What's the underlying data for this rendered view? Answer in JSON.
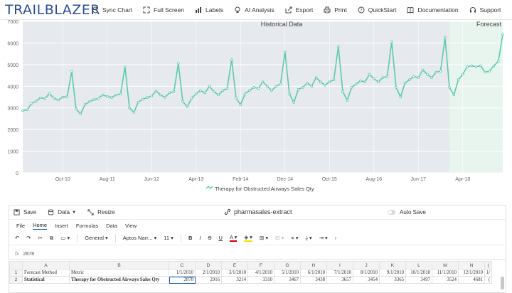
{
  "app": {
    "logo": "TRAILBLAZER",
    "toolbar": [
      {
        "label": "Sync Chart",
        "icon": "sync-icon"
      },
      {
        "label": "Full Screen",
        "icon": "fullscreen-icon"
      },
      {
        "label": "Labels",
        "icon": "labels-icon"
      },
      {
        "label": "AI Analysis",
        "icon": "lightbulb-icon"
      },
      {
        "label": "Export",
        "icon": "export-icon"
      },
      {
        "label": "Print",
        "icon": "print-icon"
      },
      {
        "label": "QuickStart",
        "icon": "help-icon"
      },
      {
        "label": "Documentation",
        "icon": "book-icon"
      },
      {
        "label": "Support",
        "icon": "support-icon"
      }
    ]
  },
  "chart_data": {
    "type": "line",
    "annotations": [
      "Historical Data",
      "Forecast"
    ],
    "legend": [
      "Therapy for Obstructed Airways Sales Qty"
    ],
    "legend_placement": "bottom",
    "ylim": [
      0,
      7000
    ],
    "yticks": [
      "0",
      "1000",
      "2000",
      "3000",
      "4000",
      "5000",
      "6000",
      "7000"
    ],
    "xticks": [
      "Oct-10",
      "Aug-11",
      "Jun-12",
      "Apr-13",
      "Feb-14",
      "Dec-14",
      "Oct-15",
      "Aug-16",
      "Jun-17",
      "Apr-18"
    ],
    "color": "#5ec9ad",
    "forecast_shade": "#e8f5ef",
    "history_shade": "#e6e9ee",
    "series": [
      {
        "name": "Therapy for Obstructed Airways Sales Qty",
        "values": [
          2878,
          2916,
          3214,
          3310,
          3467,
          3438,
          3657,
          3454,
          3365,
          3497,
          3524,
          4681,
          2950,
          2720,
          3150,
          3290,
          3380,
          3440,
          3600,
          3530,
          3480,
          3600,
          3640,
          4900,
          3000,
          2800,
          3270,
          3400,
          3480,
          3550,
          3790,
          3600,
          3490,
          3700,
          3750,
          5050,
          3300,
          3050,
          3450,
          3650,
          3800,
          3700,
          4000,
          3750,
          3600,
          3800,
          3900,
          5230,
          3450,
          3150,
          3650,
          3800,
          3950,
          3900,
          4200,
          4000,
          3800,
          4000,
          4100,
          5580,
          3650,
          3250,
          3850,
          3950,
          4150,
          4000,
          4400,
          4200,
          4050,
          4200,
          4300,
          5840,
          3750,
          3350,
          3950,
          4100,
          4250,
          4200,
          4550,
          4350,
          4200,
          4400,
          4450,
          6050,
          3950,
          3500,
          4150,
          4300,
          4450,
          4400,
          4750,
          4550,
          4400,
          4650,
          4700,
          6250,
          3950,
          3600,
          4300,
          4550,
          4900,
          4950,
          4900,
          4950,
          4650,
          4700,
          4950,
          5150,
          6400
        ]
      }
    ]
  },
  "panel": {
    "save": "Save",
    "data": "Data",
    "resize": "Resize",
    "file_title": "pharmasales-extract",
    "autosave": "Auto Save"
  },
  "menu": [
    "File",
    "Home",
    "Insert",
    "Formulas",
    "Data",
    "View"
  ],
  "ribbon": {
    "format": "General",
    "font": "Aptos Narr...",
    "size": "11"
  },
  "formula_bar": {
    "fx": "fx",
    "value": "2878"
  },
  "sheet": {
    "columns": [
      "",
      "A",
      "B",
      "C",
      "D",
      "E",
      "F",
      "G",
      "H",
      "I",
      "J",
      "K",
      "L",
      "M",
      "N",
      "("
    ],
    "rows": [
      [
        "1",
        "Forecast Method",
        "Metric",
        "1/1/2010",
        "2/1/2010",
        "3/1/2010",
        "4/1/2010",
        "5/1/2010",
        "6/1/2010",
        "7/1/2010",
        "8/1/2010",
        "9/1/2010",
        "10/1/2010",
        "11/1/2010",
        "12/1/2010",
        "1/"
      ],
      [
        "2",
        "Statistical",
        "Therapy for Obstructed Airways Sales Qty",
        "2878",
        "2916",
        "3214",
        "3310",
        "3467",
        "3438",
        "3657",
        "3454",
        "3365",
        "3497",
        "3524",
        "4681",
        "("
      ]
    ]
  }
}
